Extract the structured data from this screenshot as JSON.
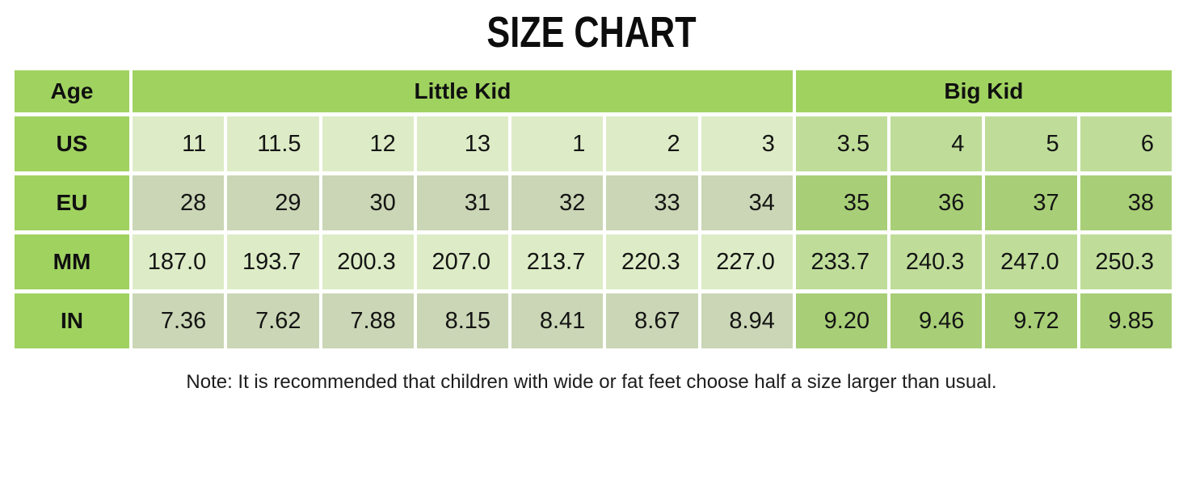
{
  "title": "SIZE CHART",
  "note": "Note: It is recommended that children with wide or fat feet choose half a size larger than usual.",
  "colors": {
    "header_green": "#a0d260",
    "little_kid_light": "#ddecc6",
    "little_kid_muted": "#cad6b5",
    "big_kid_light": "#bfdd99",
    "big_kid_dark": "#a8cf77",
    "grid_gap": "#ffffff",
    "text": "#141414"
  },
  "chart_data": {
    "type": "table",
    "title": "SIZE CHART",
    "corner_header": "Age",
    "column_groups": [
      {
        "label": "Little Kid",
        "span": 7
      },
      {
        "label": "Big Kid",
        "span": 4
      }
    ],
    "rows": [
      {
        "label": "US",
        "values": [
          "11",
          "11.5",
          "12",
          "13",
          "1",
          "2",
          "3",
          "3.5",
          "4",
          "5",
          "6"
        ]
      },
      {
        "label": "EU",
        "values": [
          "28",
          "29",
          "30",
          "31",
          "32",
          "33",
          "34",
          "35",
          "36",
          "37",
          "38"
        ]
      },
      {
        "label": "MM",
        "values": [
          "187.0",
          "193.7",
          "200.3",
          "207.0",
          "213.7",
          "220.3",
          "227.0",
          "233.7",
          "240.3",
          "247.0",
          "250.3"
        ]
      },
      {
        "label": "IN",
        "values": [
          "7.36",
          "7.62",
          "7.88",
          "8.15",
          "8.41",
          "8.67",
          "8.94",
          "9.20",
          "9.46",
          "9.72",
          "9.85"
        ]
      }
    ]
  }
}
